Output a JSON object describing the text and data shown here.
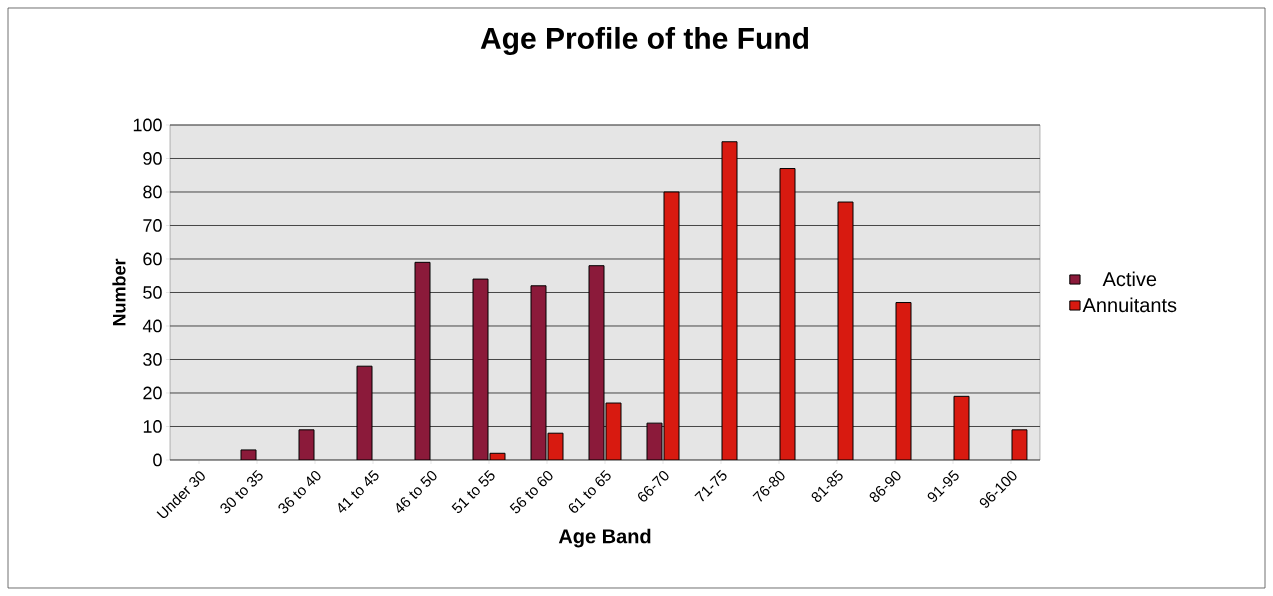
{
  "chart_data": {
    "type": "bar",
    "title": "Age Profile of the Fund",
    "xlabel": "Age Band",
    "ylabel": "Number",
    "categories": [
      "Under 30",
      "30 to 35",
      "36 to 40",
      "41 to 45",
      "46 to 50",
      "51 to 55",
      "56 to 60",
      "61 to 65",
      "66-70",
      "71-75",
      "76-80",
      "81-85",
      "86-90",
      "91-95",
      "96-100"
    ],
    "series": [
      {
        "name": "Active",
        "color": "#8b1a3a",
        "values": [
          null,
          3,
          9,
          28,
          59,
          54,
          52,
          58,
          11,
          null,
          null,
          null,
          null,
          null,
          null
        ]
      },
      {
        "name": "Annuitants",
        "color": "#d81a10",
        "values": [
          null,
          null,
          null,
          null,
          null,
          2,
          8,
          17,
          80,
          95,
          87,
          77,
          47,
          19,
          9
        ]
      }
    ],
    "ylim": [
      0,
      100
    ],
    "yticks": [
      0,
      10,
      20,
      30,
      40,
      50,
      60,
      70,
      80,
      90,
      100
    ],
    "grid": "y",
    "legend": "right"
  }
}
